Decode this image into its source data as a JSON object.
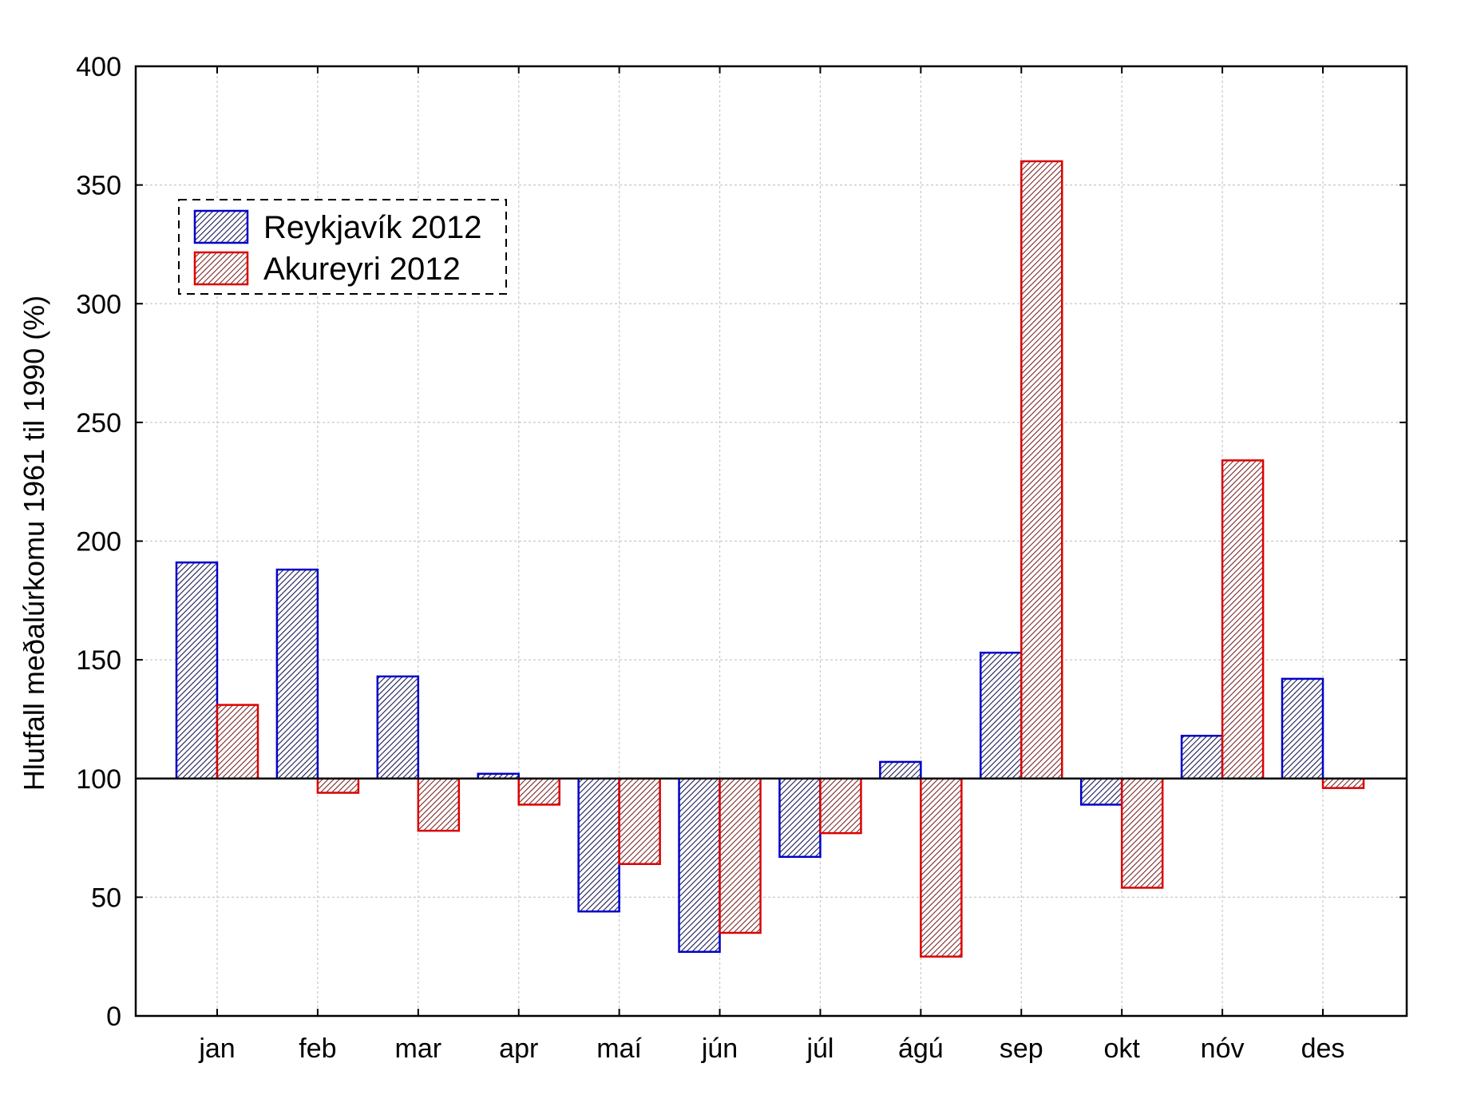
{
  "chart_data": {
    "type": "bar",
    "title": "",
    "xlabel": "",
    "ylabel": "Hlutfall meðalúrkomu 1961 til 1990 (%)",
    "ylim": [
      0,
      400
    ],
    "yticks": [
      0,
      50,
      100,
      150,
      200,
      250,
      300,
      350,
      400
    ],
    "baseline": 100,
    "grid": true,
    "legend_position": "top-left",
    "categories": [
      "jan",
      "feb",
      "mar",
      "apr",
      "maí",
      "jún",
      "júl",
      "ágú",
      "sep",
      "okt",
      "nóv",
      "des"
    ],
    "series": [
      {
        "name": "Reykjavík 2012",
        "color": "#0000cc",
        "fill_pattern": "hatched-dark",
        "values": [
          191,
          188,
          143,
          102,
          44,
          27,
          67,
          107,
          153,
          89,
          118,
          142
        ]
      },
      {
        "name": "Akureyri 2012",
        "color": "#dd0000",
        "fill_pattern": "hatched-red",
        "values": [
          131,
          94,
          78,
          89,
          64,
          35,
          77,
          25,
          360,
          54,
          234,
          96
        ]
      }
    ]
  }
}
